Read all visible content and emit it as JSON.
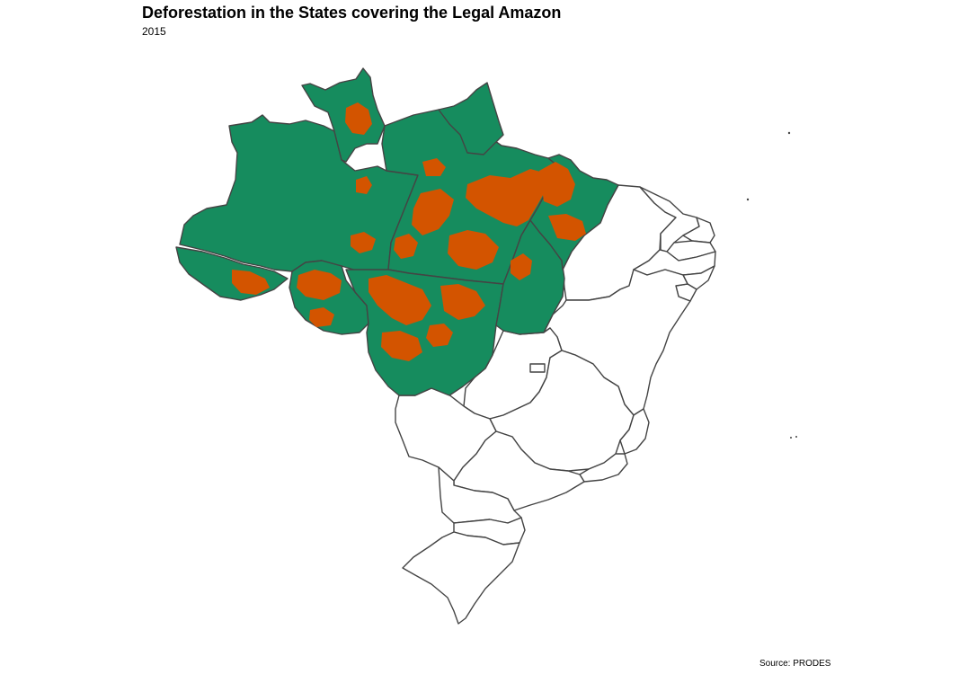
{
  "title": "Deforestation in the States covering the Legal Amazon",
  "subtitle": "2015",
  "caption": "Source: PRODES",
  "colors": {
    "legal_amazon_fill": "#168c5e",
    "deforestation": "#d35400",
    "other_states_fill": "#ffffff",
    "border": "#444444"
  },
  "map": {
    "legal_amazon_states": [
      "AC",
      "AM",
      "RR",
      "PA",
      "AP",
      "RO",
      "MT",
      "TO",
      "MA"
    ],
    "other_states": [
      "PI",
      "CE",
      "RN",
      "PB",
      "PE",
      "AL",
      "SE",
      "BA",
      "GO",
      "DF",
      "MG",
      "ES",
      "MS",
      "RJ",
      "SP",
      "PR",
      "SC",
      "RS"
    ]
  }
}
